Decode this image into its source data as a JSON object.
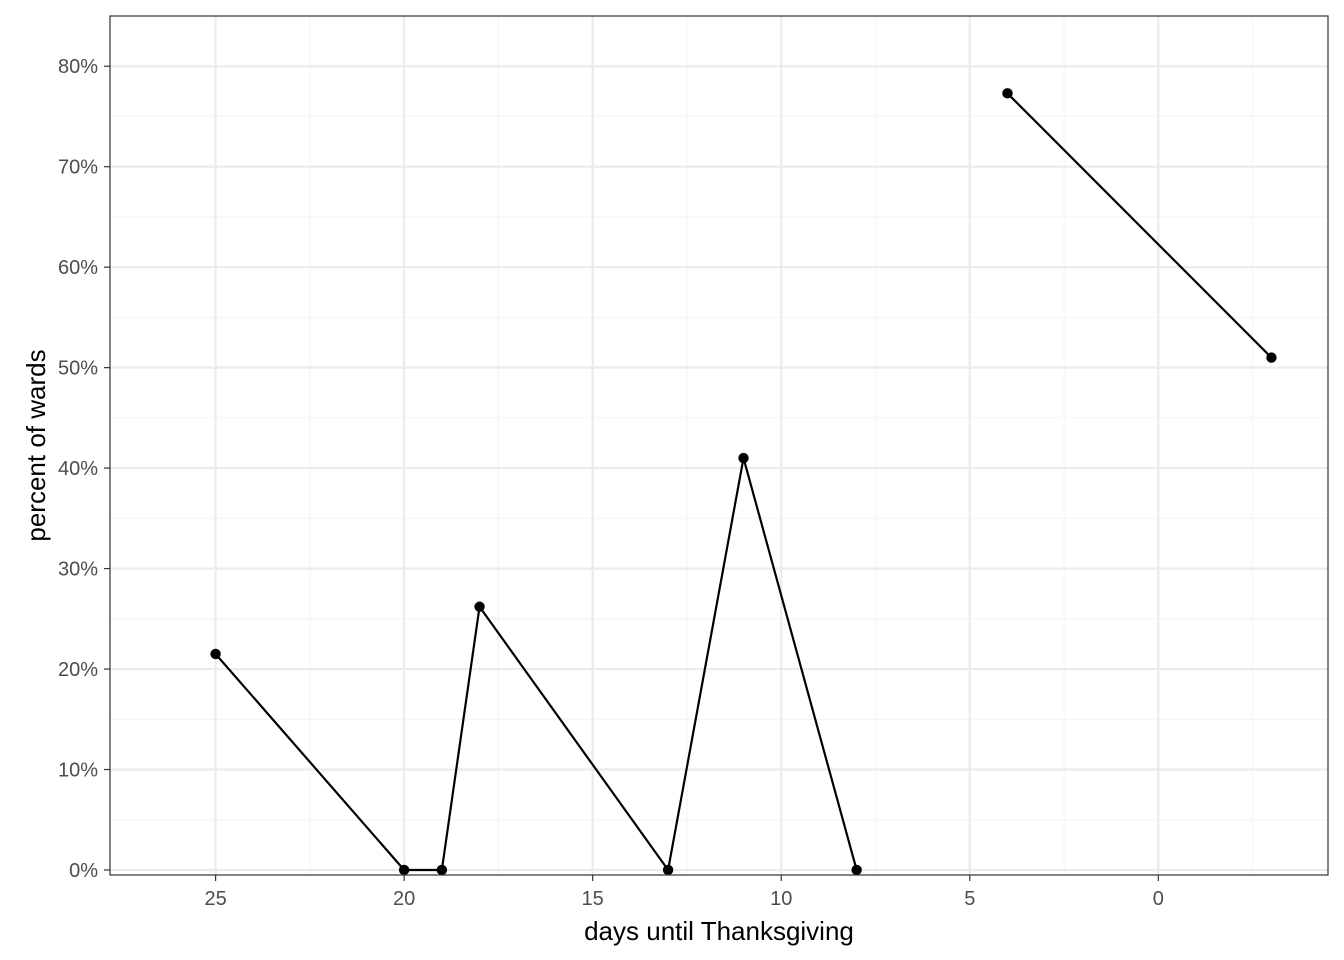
{
  "chart_data": {
    "type": "line",
    "title": "",
    "xlabel": "days until Thanksgiving",
    "ylabel": "percent of wards",
    "x_reversed": true,
    "xlim": [
      27.8,
      -4.5
    ],
    "ylim": [
      -0.5,
      85.0
    ],
    "x_ticks": [
      25,
      20,
      15,
      10,
      5,
      0
    ],
    "x_tick_labels": [
      "25",
      "20",
      "15",
      "10",
      "5",
      "0"
    ],
    "y_ticks": [
      0,
      10,
      20,
      30,
      40,
      50,
      60,
      70,
      80
    ],
    "y_tick_labels": [
      "0%",
      "10%",
      "20%",
      "30%",
      "40%",
      "50%",
      "60%",
      "70%",
      "80%"
    ],
    "grid": true,
    "legend": "none",
    "series": [
      {
        "color": "#000000",
        "segments": [
          {
            "x": [
              25,
              20,
              19,
              18,
              13,
              11,
              8
            ],
            "y": [
              21.5,
              0,
              0,
              26.2,
              0,
              41.0,
              0
            ]
          },
          {
            "x": [
              4,
              -3
            ],
            "y": [
              77.3,
              51.0
            ]
          }
        ]
      }
    ],
    "colors": {
      "background": "#ffffff",
      "grid_major": "#ebebeb",
      "grid_minor": "#f4f4f4",
      "panel_border": "#333333",
      "line": "#000000",
      "tick_text": "#4d4d4d",
      "axis_title": "#000000"
    }
  }
}
